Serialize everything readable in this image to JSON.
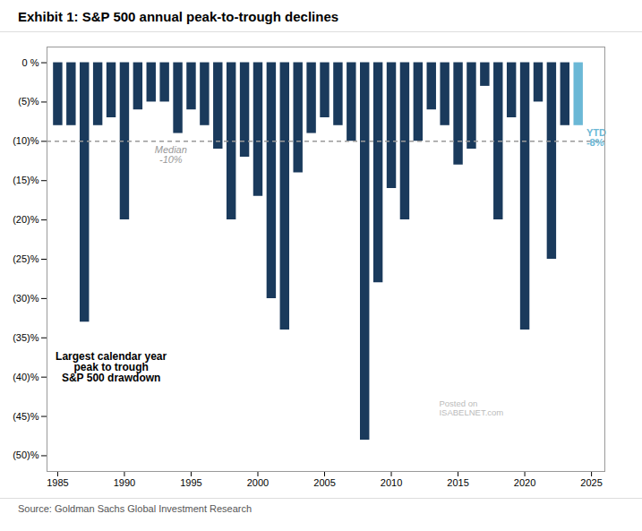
{
  "chart_data": {
    "type": "bar",
    "title": "Exhibit 1: S&P 500 annual peak-to-trough declines",
    "source": "Source: Goldman Sachs Global Investment Research",
    "x": [
      1985,
      1986,
      1987,
      1988,
      1989,
      1990,
      1991,
      1992,
      1993,
      1994,
      1995,
      1996,
      1997,
      1998,
      1999,
      2000,
      2001,
      2002,
      2003,
      2004,
      2005,
      2006,
      2007,
      2008,
      2009,
      2010,
      2011,
      2012,
      2013,
      2014,
      2015,
      2016,
      2017,
      2018,
      2019,
      2020,
      2021,
      2022,
      2023,
      2024
    ],
    "values": [
      -8,
      -8,
      -33,
      -8,
      -7,
      -20,
      -6,
      -5,
      -5,
      -9,
      -6,
      -8,
      -11,
      -20,
      -12,
      -17,
      -30,
      -34,
      -14,
      -9,
      -7,
      -8,
      -10,
      -48,
      -28,
      -16,
      -20,
      -10,
      -6,
      -8,
      -13,
      -11,
      -3,
      -20,
      -7,
      -34,
      -5,
      -25,
      -8,
      -8
    ],
    "colors": [
      "#1a3a5c",
      "#1a3a5c",
      "#1a3a5c",
      "#1a3a5c",
      "#1a3a5c",
      "#1a3a5c",
      "#1a3a5c",
      "#1a3a5c",
      "#1a3a5c",
      "#1a3a5c",
      "#1a3a5c",
      "#1a3a5c",
      "#1a3a5c",
      "#1a3a5c",
      "#1a3a5c",
      "#1a3a5c",
      "#1a3a5c",
      "#1a3a5c",
      "#1a3a5c",
      "#1a3a5c",
      "#1a3a5c",
      "#1a3a5c",
      "#1a3a5c",
      "#1a3a5c",
      "#1a3a5c",
      "#1a3a5c",
      "#1a3a5c",
      "#1a3a5c",
      "#1a3a5c",
      "#1a3a5c",
      "#1a3a5c",
      "#1a3a5c",
      "#1a3a5c",
      "#1a3a5c",
      "#1a3a5c",
      "#1a3a5c",
      "#1a3a5c",
      "#1a3a5c",
      "#1a3a5c",
      "#6bb8d6"
    ],
    "xlim": [
      1984.2,
      2026
    ],
    "xticks": [
      1985,
      1990,
      1995,
      2000,
      2005,
      2010,
      2015,
      2020,
      2025
    ],
    "ylim": [
      -52,
      2
    ],
    "yticks": [
      {
        "value": 0,
        "label": "0 %"
      },
      {
        "value": -5,
        "label": "(5)%"
      },
      {
        "value": -10,
        "label": "(10)%"
      },
      {
        "value": -15,
        "label": "(15)%"
      },
      {
        "value": -20,
        "label": "(20)%"
      },
      {
        "value": -25,
        "label": "(25)%"
      },
      {
        "value": -30,
        "label": "(30)%"
      },
      {
        "value": -35,
        "label": "(35)%"
      },
      {
        "value": -40,
        "label": "(40)%"
      },
      {
        "value": -45,
        "label": "(45)%"
      },
      {
        "value": -50,
        "label": "(50)%"
      }
    ],
    "grid": false,
    "median": {
      "value": -10,
      "label": "Median\n-10%",
      "color": "#999999"
    },
    "ytd_label": {
      "text": "YTD\n-8%",
      "x": 2024,
      "value": -8
    },
    "annotations": [
      {
        "text": "Largest calendar year\npeak to trough\nS&P 500 drawdown",
        "color": "#000000"
      },
      {
        "text": "Posted on\nISABELNET.com",
        "color": "#bbbbbb"
      }
    ]
  }
}
